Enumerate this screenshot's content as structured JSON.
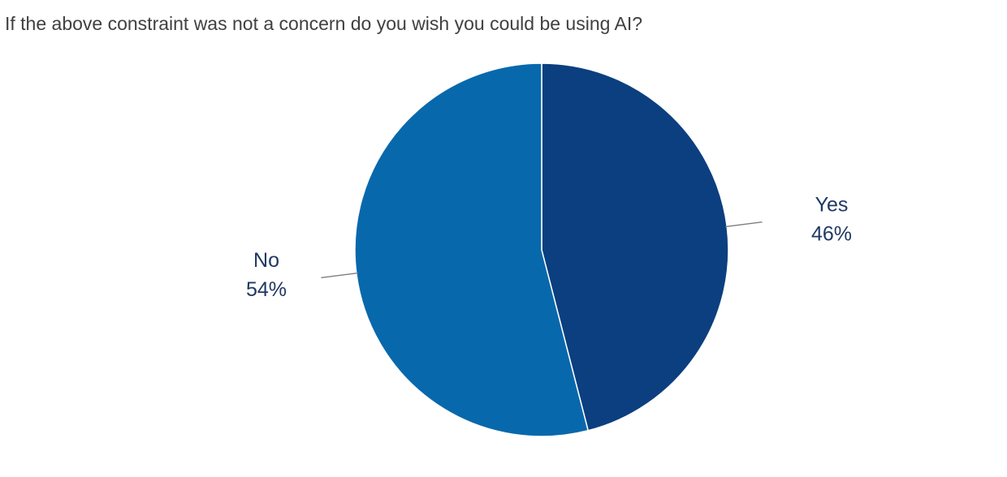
{
  "chart_data": {
    "type": "pie",
    "title": "If the above constraint was not a concern do you wish you could be using AI?",
    "categories": [
      "Yes",
      "No"
    ],
    "values": [
      46,
      54
    ],
    "value_labels": [
      "46%",
      "54%"
    ],
    "colors": [
      "#0b3f7f",
      "#0868ac"
    ]
  }
}
